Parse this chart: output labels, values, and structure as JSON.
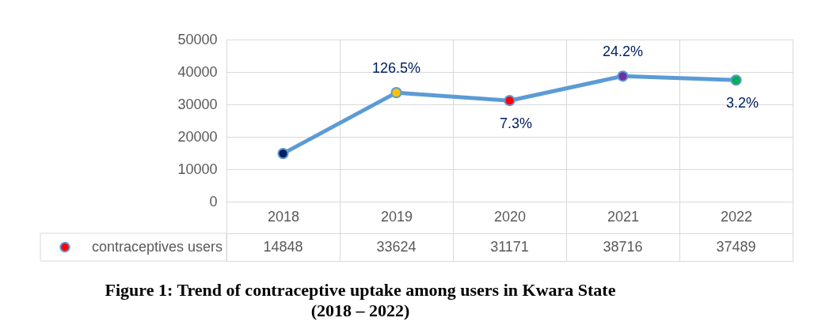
{
  "chart_data": {
    "type": "line",
    "title": "Figure 1: Trend of contraceptive uptake among users in Kwara State (2018 – 2022)",
    "categories": [
      "2018",
      "2019",
      "2020",
      "2021",
      "2022"
    ],
    "series": [
      {
        "name": "contraceptives users",
        "color": "#5b9bd5",
        "colors": [
          "#002060",
          "#ffc000",
          "#ff0000",
          "#7030a0",
          "#00b050"
        ],
        "values": [
          14848,
          33624,
          31171,
          38716,
          37489
        ]
      }
    ],
    "ylim": [
      0,
      50000
    ],
    "yticks": [
      0,
      10000,
      20000,
      30000,
      40000,
      50000
    ],
    "grid": true,
    "marker": "circle",
    "legend": "bottom left",
    "data_labels": true,
    "annotations": [
      {
        "text": "126.5%",
        "x": "2019",
        "y": 33624
      },
      {
        "text": "7.3%",
        "x": "2020",
        "y": 31171
      },
      {
        "text": "24.2%",
        "x": "2021",
        "y": 38716
      },
      {
        "text": "3.2%",
        "x": "2022",
        "y": 37489
      }
    ]
  }
}
